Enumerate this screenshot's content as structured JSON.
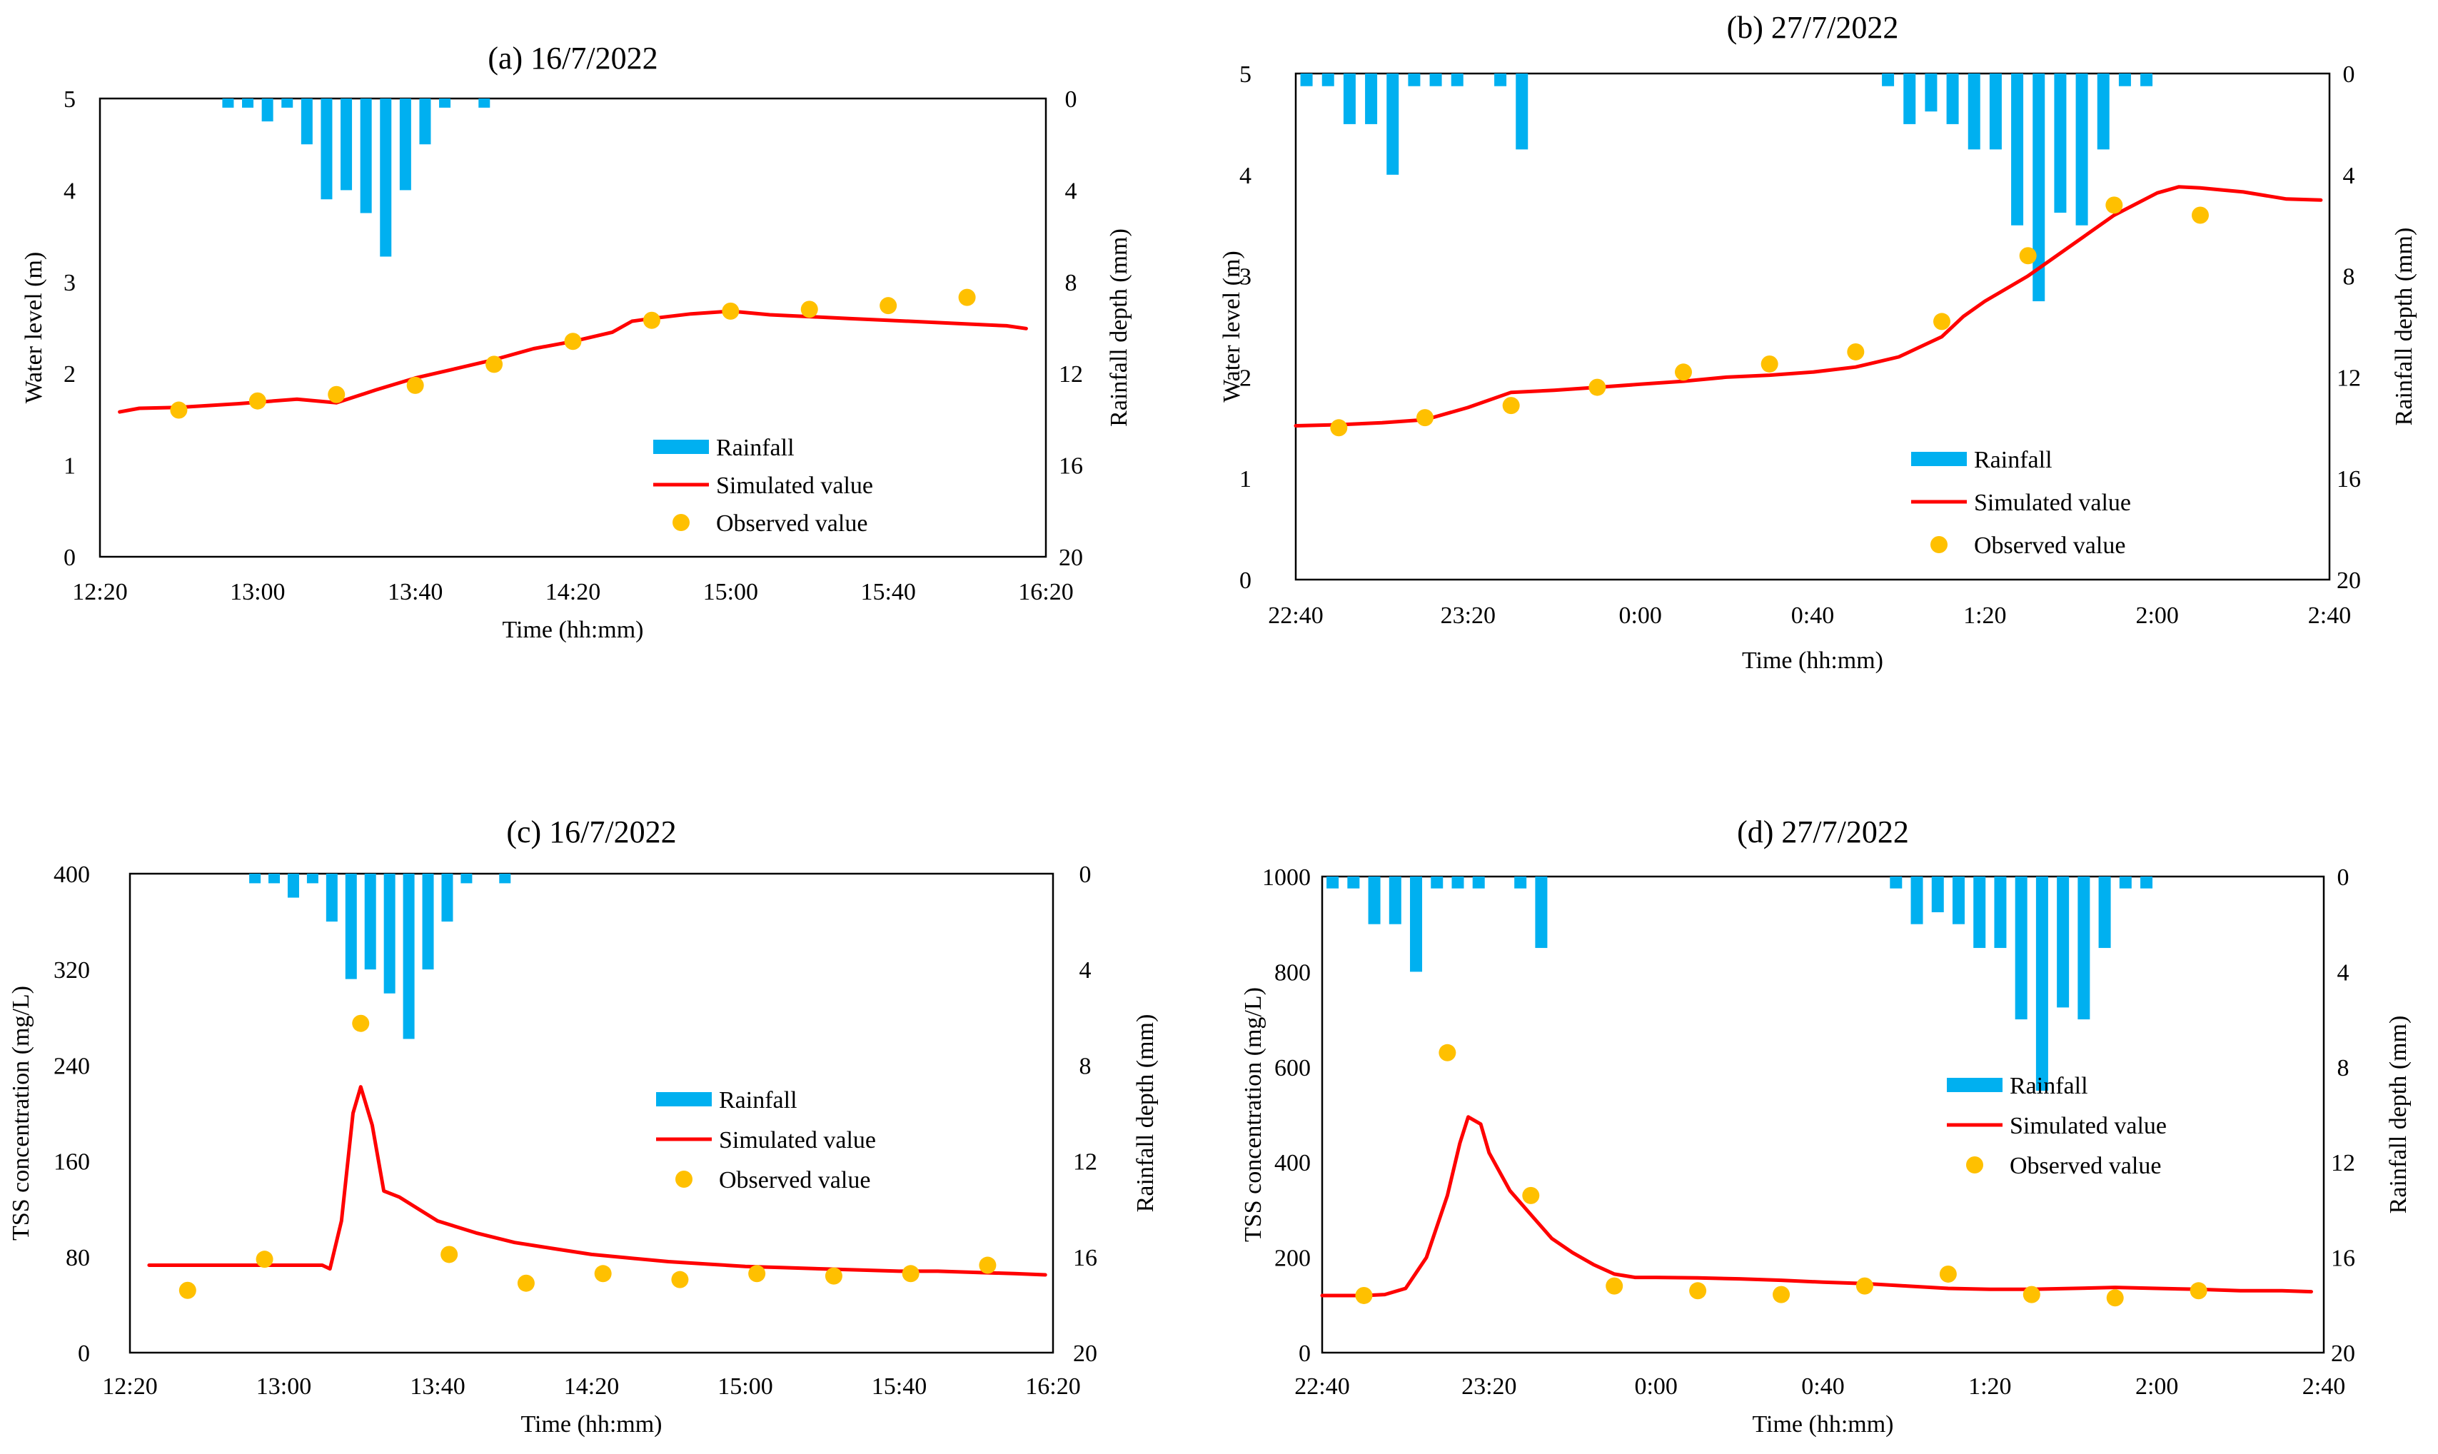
{
  "colors": {
    "rainfall": "#00b0f0",
    "simulated": "#ff0000",
    "observed": "#ffc000",
    "axis": "#000000"
  },
  "legend": {
    "rainfall": "Rainfall",
    "simulated": "Simulated value",
    "observed": "Observed value"
  },
  "chart_data": [
    {
      "type": "line",
      "title": "(a) 16/7/2022",
      "xlabel": "Time (hh:mm)",
      "ylabel": "Water level  (m)",
      "y2label": "Rainfall depth (mm)",
      "xlim_minutes": [
        740,
        980
      ],
      "ylim": [
        0,
        5
      ],
      "y2lim": [
        0,
        20
      ],
      "x_ticks": [
        "12:20",
        "13:00",
        "13:40",
        "14:20",
        "15:00",
        "15:40",
        "16:20"
      ],
      "y_ticks": [
        "0",
        "1",
        "2",
        "3",
        "4",
        "5"
      ],
      "y2_ticks": [
        "0",
        "4",
        "8",
        "12",
        "16",
        "20"
      ],
      "legend_position": "lower-right",
      "rainfall": {
        "start_minutes": 770,
        "step_minutes": 5,
        "values": [
          0.4,
          0.4,
          1.0,
          0.4,
          2.0,
          4.4,
          4.0,
          5.0,
          6.9,
          4.0,
          2.0,
          0.4,
          0,
          0.4
        ]
      },
      "simulated": {
        "x_minutes": [
          745,
          750,
          760,
          775,
          790,
          800,
          810,
          820,
          830,
          840,
          850,
          860,
          870,
          875,
          880,
          890,
          900,
          910,
          920,
          930,
          940,
          950,
          960,
          970,
          975
        ],
        "y": [
          1.58,
          1.62,
          1.63,
          1.67,
          1.72,
          1.68,
          1.82,
          1.95,
          2.05,
          2.15,
          2.27,
          2.35,
          2.45,
          2.57,
          2.6,
          2.65,
          2.68,
          2.64,
          2.62,
          2.6,
          2.58,
          2.56,
          2.54,
          2.52,
          2.49
        ]
      },
      "observed": {
        "x_minutes": [
          760,
          780,
          800,
          820,
          840,
          860,
          880,
          900,
          920,
          940,
          960
        ],
        "y": [
          1.6,
          1.7,
          1.77,
          1.87,
          2.1,
          2.35,
          2.58,
          2.68,
          2.7,
          2.74,
          2.83
        ]
      }
    },
    {
      "type": "line",
      "title": "(b) 27/7/2022",
      "xlabel": "Time (hh:mm)",
      "ylabel": "Water level  (m)",
      "y2label": "Rainfall depth (mm)",
      "xlim_minutes": [
        1360,
        1600
      ],
      "ylim": [
        0,
        5
      ],
      "y2lim": [
        0,
        20
      ],
      "x_ticks": [
        "22:40",
        "23:20",
        "0:00",
        "0:40",
        "1:20",
        "2:00",
        "2:40"
      ],
      "y_ticks": [
        "0",
        "1",
        "2",
        "3",
        "4",
        "5"
      ],
      "y2_ticks": [
        "0",
        "4",
        "8",
        "12",
        "16",
        "20"
      ],
      "legend_position": "lower-right",
      "rainfall": {
        "start_minutes": 1360,
        "step_minutes": 5,
        "values": [
          0.5,
          0.5,
          2.0,
          2.0,
          4.0,
          0.5,
          0.5,
          0.5,
          0,
          0.5,
          3.0,
          0,
          0,
          0,
          0,
          0,
          0,
          0,
          0,
          0,
          0,
          0,
          0,
          0,
          0,
          0,
          0,
          0.5,
          2.0,
          1.5,
          2.0,
          3.0,
          3.0,
          6.0,
          9.0,
          5.5,
          6.0,
          3.0,
          0.5,
          0.5
        ]
      },
      "simulated": {
        "x_minutes": [
          1360,
          1370,
          1380,
          1390,
          1400,
          1410,
          1420,
          1430,
          1440,
          1450,
          1460,
          1470,
          1480,
          1490,
          1500,
          1505,
          1510,
          1515,
          1520,
          1530,
          1540,
          1550,
          1560,
          1565,
          1570,
          1575,
          1580,
          1590,
          1598
        ],
        "y": [
          1.52,
          1.53,
          1.55,
          1.58,
          1.7,
          1.85,
          1.87,
          1.9,
          1.93,
          1.96,
          2.0,
          2.02,
          2.05,
          2.1,
          2.2,
          2.3,
          2.4,
          2.6,
          2.75,
          3.0,
          3.3,
          3.6,
          3.82,
          3.88,
          3.87,
          3.85,
          3.83,
          3.76,
          3.75
        ]
      },
      "observed": {
        "x_minutes": [
          1370,
          1390,
          1410,
          1430,
          1450,
          1470,
          1490,
          1510,
          1530,
          1550,
          1570
        ],
        "y": [
          1.5,
          1.6,
          1.72,
          1.9,
          2.05,
          2.13,
          2.25,
          2.55,
          3.2,
          3.7,
          3.6
        ]
      }
    },
    {
      "type": "line",
      "title": "(c) 16/7/2022",
      "xlabel": "Time (hh:mm)",
      "ylabel": "TSS concentration (mg/L)",
      "y2label": "Rainfall depth (mm)",
      "xlim_minutes": [
        740,
        980
      ],
      "ylim": [
        0,
        400
      ],
      "y2lim": [
        0,
        20
      ],
      "x_ticks": [
        "12:20",
        "13:00",
        "13:40",
        "14:20",
        "15:00",
        "15:40",
        "16:20"
      ],
      "y_ticks": [
        "0",
        "80",
        "160",
        "240",
        "320",
        "400"
      ],
      "y2_ticks": [
        "0",
        "4",
        "8",
        "12",
        "16",
        "20"
      ],
      "legend_position": "right",
      "rainfall": {
        "start_minutes": 770,
        "step_minutes": 5,
        "values": [
          0.4,
          0.4,
          1.0,
          0.4,
          2.0,
          4.4,
          4.0,
          5.0,
          6.9,
          4.0,
          2.0,
          0.4,
          0,
          0.4
        ]
      },
      "simulated": {
        "x_minutes": [
          745,
          760,
          780,
          790,
          792,
          795,
          798,
          800,
          803,
          806,
          810,
          815,
          820,
          830,
          840,
          850,
          860,
          870,
          880,
          890,
          900,
          910,
          920,
          930,
          940,
          950,
          960,
          970,
          978
        ],
        "y": [
          73,
          73,
          73,
          73,
          70,
          110,
          200,
          222,
          190,
          135,
          130,
          120,
          110,
          100,
          92,
          87,
          82,
          79,
          76,
          74,
          72,
          71,
          70,
          69,
          68,
          68,
          67,
          66,
          65
        ]
      },
      "observed": {
        "x_minutes": [
          755,
          775,
          800,
          823,
          843,
          863,
          883,
          903,
          923,
          943,
          963
        ],
        "y": [
          52,
          78,
          275,
          82,
          58,
          66,
          61,
          66,
          64,
          66,
          73
        ]
      }
    },
    {
      "type": "line",
      "title": "(d) 27/7/2022",
      "xlabel": "Time (hh:mm)",
      "ylabel": "TSS concentration (mg/L)",
      "y2label": "Rainfall depth (mm)",
      "xlim_minutes": [
        1360,
        1600
      ],
      "ylim": [
        0,
        1000
      ],
      "y2lim": [
        0,
        20
      ],
      "x_ticks": [
        "22:40",
        "23:20",
        "0:00",
        "0:40",
        "1:20",
        "2:00",
        "2:40"
      ],
      "y_ticks": [
        "0",
        "200",
        "400",
        "600",
        "800",
        "1000"
      ],
      "y2_ticks": [
        "0",
        "4",
        "8",
        "12",
        "16",
        "20"
      ],
      "legend_position": "right",
      "rainfall": {
        "start_minutes": 1360,
        "step_minutes": 5,
        "values": [
          0.5,
          0.5,
          2.0,
          2.0,
          4.0,
          0.5,
          0.5,
          0.5,
          0,
          0.5,
          3.0,
          0,
          0,
          0,
          0,
          0,
          0,
          0,
          0,
          0,
          0,
          0,
          0,
          0,
          0,
          0,
          0,
          0.5,
          2.0,
          1.5,
          2.0,
          3.0,
          3.0,
          6.0,
          9.0,
          5.5,
          6.0,
          3.0,
          0.5,
          0.5
        ]
      },
      "simulated": {
        "x_minutes": [
          1360,
          1370,
          1375,
          1380,
          1385,
          1390,
          1393,
          1395,
          1398,
          1400,
          1405,
          1410,
          1415,
          1420,
          1425,
          1430,
          1435,
          1440,
          1450,
          1460,
          1470,
          1480,
          1490,
          1500,
          1510,
          1520,
          1530,
          1540,
          1550,
          1560,
          1570,
          1580,
          1590,
          1597
        ],
        "y": [
          120,
          120,
          122,
          135,
          200,
          330,
          440,
          495,
          480,
          420,
          340,
          290,
          240,
          210,
          185,
          165,
          158,
          158,
          157,
          155,
          152,
          148,
          145,
          140,
          135,
          133,
          133,
          135,
          137,
          135,
          133,
          130,
          130,
          128
        ]
      },
      "observed": {
        "x_minutes": [
          1370,
          1390,
          1410,
          1430,
          1450,
          1470,
          1490,
          1510,
          1530,
          1550,
          1570
        ],
        "y": [
          120,
          630,
          330,
          140,
          130,
          122,
          140,
          165,
          122,
          115,
          130
        ]
      }
    }
  ]
}
